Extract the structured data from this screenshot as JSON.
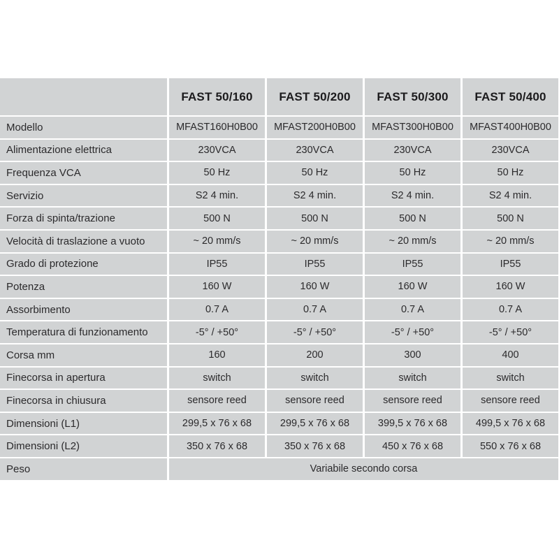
{
  "table": {
    "corner_label": "",
    "columns": [
      "FAST 50/160",
      "FAST 50/200",
      "FAST 50/300",
      "FAST 50/400"
    ],
    "rows": [
      {
        "label": "Modello",
        "values": [
          "MFAST160H0B00",
          "MFAST200H0B00",
          "MFAST300H0B00",
          "MFAST400H0B00"
        ]
      },
      {
        "label": "Alimentazione elettrica",
        "values": [
          "230VCA",
          "230VCA",
          "230VCA",
          "230VCA"
        ]
      },
      {
        "label": "Frequenza VCA",
        "values": [
          "50 Hz",
          "50 Hz",
          "50 Hz",
          "50 Hz"
        ]
      },
      {
        "label": "Servizio",
        "values": [
          "S2 4 min.",
          "S2 4 min.",
          "S2 4 min.",
          "S2 4 min."
        ]
      },
      {
        "label": "Forza di spinta/trazione",
        "values": [
          "500 N",
          "500 N",
          "500 N",
          "500 N"
        ]
      },
      {
        "label": "Velocità di traslazione a vuoto",
        "values": [
          "~ 20 mm/s",
          "~ 20 mm/s",
          "~ 20 mm/s",
          "~ 20 mm/s"
        ]
      },
      {
        "label": "Grado di protezione",
        "values": [
          "IP55",
          "IP55",
          "IP55",
          "IP55"
        ]
      },
      {
        "label": "Potenza",
        "values": [
          "160 W",
          "160 W",
          "160 W",
          "160 W"
        ]
      },
      {
        "label": "Assorbimento",
        "values": [
          "0.7 A",
          "0.7 A",
          "0.7 A",
          "0.7 A"
        ]
      },
      {
        "label": "Temperatura di funzionamento",
        "values": [
          "-5° / +50°",
          "-5° / +50°",
          "-5° / +50°",
          "-5° / +50°"
        ]
      },
      {
        "label": "Corsa mm",
        "values": [
          "160",
          "200",
          "300",
          "400"
        ]
      },
      {
        "label": "Finecorsa in apertura",
        "values": [
          "switch",
          "switch",
          "switch",
          "switch"
        ]
      },
      {
        "label": "Finecorsa in chiusura",
        "values": [
          "sensore reed",
          "sensore reed",
          "sensore reed",
          "sensore reed"
        ]
      },
      {
        "label": "Dimensioni (L1)",
        "values": [
          "299,5 x 76 x 68",
          "299,5 x 76 x 68",
          "399,5 x 76 x 68",
          "499,5 x 76 x 68"
        ]
      },
      {
        "label": "Dimensioni (L2)",
        "values": [
          "350 x 76 x 68",
          "350 x 76 x 68",
          "450 x 76 x 68",
          "550 x 76 x 68"
        ]
      },
      {
        "label": "Peso",
        "values": [
          "Variabile secondo corsa"
        ],
        "span": 4
      }
    ],
    "colors": {
      "cell_background": "#d1d3d4",
      "grid_lines": "#ffffff",
      "text": "#2b2a2c"
    }
  }
}
